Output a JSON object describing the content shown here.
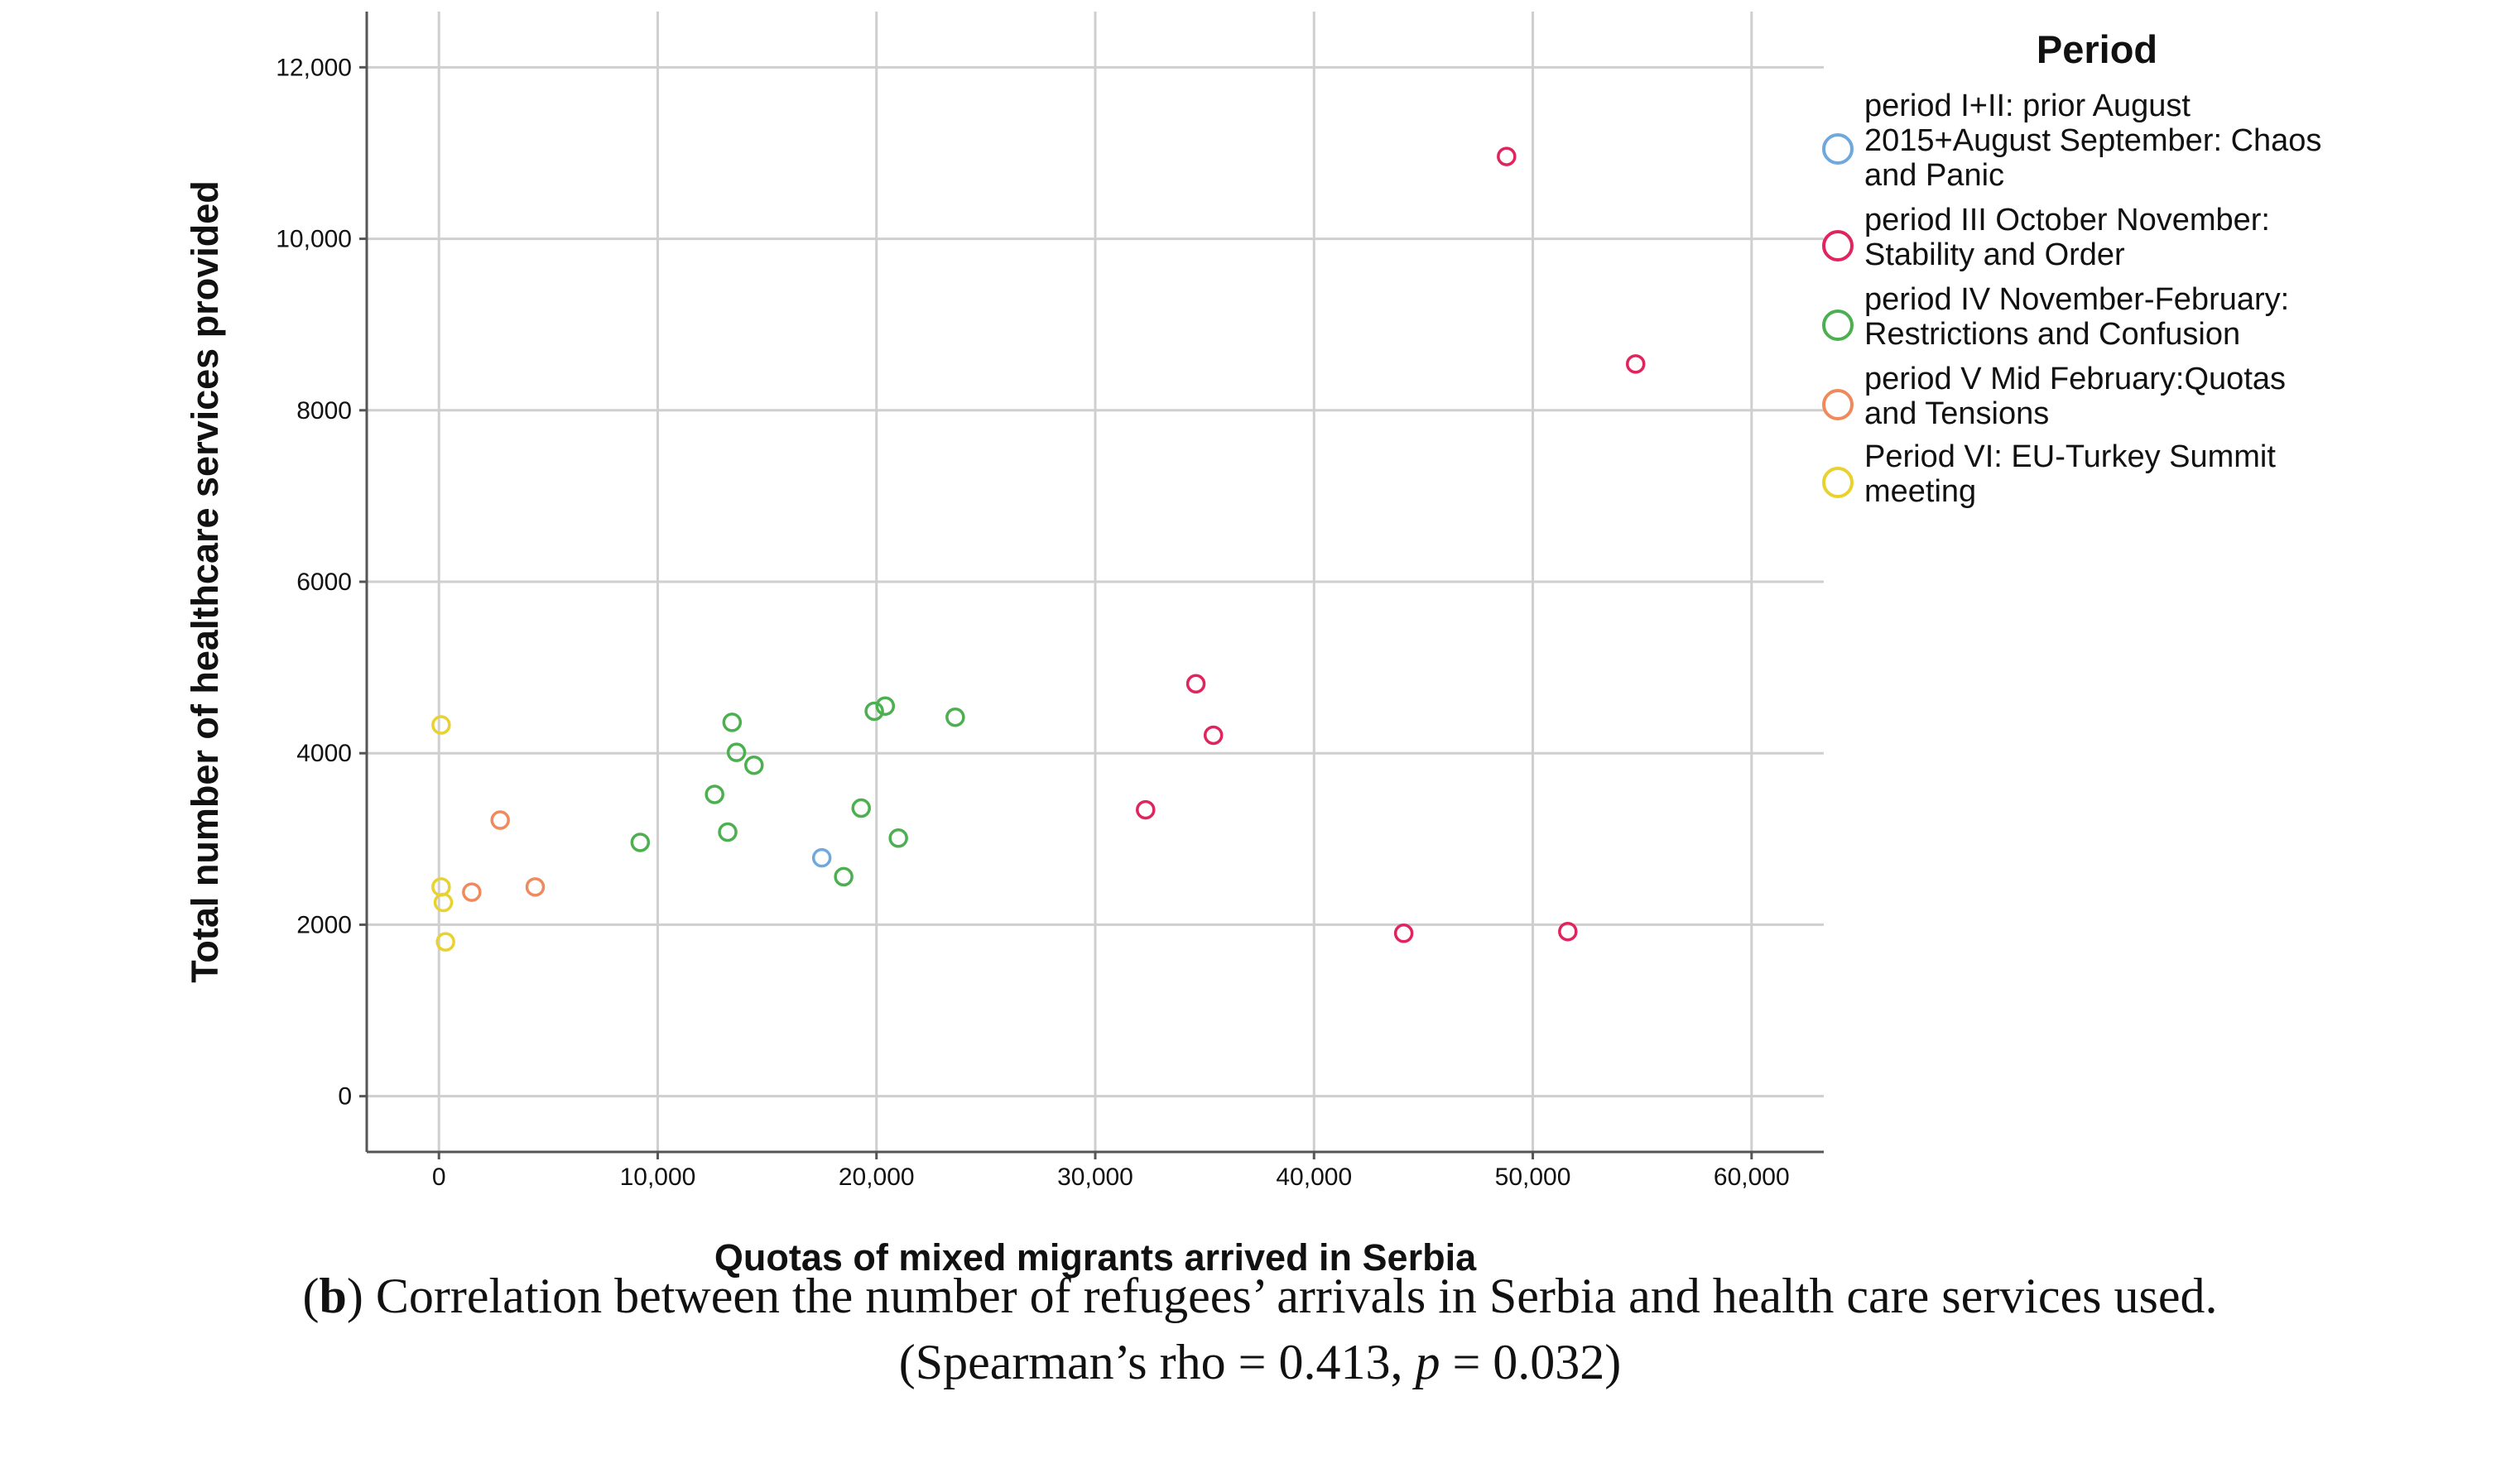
{
  "chart_data": {
    "type": "scatter",
    "xlabel": "Quotas of mixed migrants arrived in Serbia",
    "ylabel": "Total number of healthcare services provided",
    "xlim": [
      -3300,
      63300
    ],
    "ylim": [
      -650,
      12650
    ],
    "xticks": [
      0,
      10000,
      20000,
      30000,
      40000,
      50000,
      60000
    ],
    "xtick_labels": [
      "0",
      "10,000",
      "20,000",
      "30,000",
      "40,000",
      "50,000",
      "60,000"
    ],
    "yticks": [
      0,
      2000,
      4000,
      6000,
      8000,
      10000,
      12000
    ],
    "ytick_labels": [
      "0",
      "2000",
      "4000",
      "6000",
      "8000",
      "10,000",
      "12,000"
    ],
    "grid": true,
    "legend_title": "Period",
    "legend_position": "right",
    "series": [
      {
        "name": "period I+II: prior August 2015+August September: Chaos and Panic",
        "legend_lines": [
          "period I+II: prior August",
          "2015+August September: Chaos",
          "and Panic"
        ],
        "color": "#6fa8dc",
        "points": [
          [
            17500,
            2780
          ]
        ]
      },
      {
        "name": "period III October November: Stability and Order",
        "legend_lines": [
          "period III October November:",
          "Stability and Order"
        ],
        "color": "#e0245e",
        "points": [
          [
            48800,
            10960
          ],
          [
            54700,
            8540
          ],
          [
            34600,
            4810
          ],
          [
            35400,
            4210
          ],
          [
            32300,
            3340
          ],
          [
            44100,
            1900
          ],
          [
            51600,
            1920
          ]
        ]
      },
      {
        "name": "period IV November-February: Restrictions and Confusion",
        "legend_lines": [
          "period IV November-February:",
          "Restrictions and Confusion"
        ],
        "color": "#4caf50",
        "points": [
          [
            13400,
            4360
          ],
          [
            13600,
            4010
          ],
          [
            14400,
            3860
          ],
          [
            12600,
            3520
          ],
          [
            13200,
            3080
          ],
          [
            9200,
            2960
          ],
          [
            20400,
            4550
          ],
          [
            19900,
            4490
          ],
          [
            23600,
            4420
          ],
          [
            19300,
            3360
          ],
          [
            21000,
            3010
          ],
          [
            18500,
            2560
          ]
        ]
      },
      {
        "name": "period V Mid February:Quotas and Tensions",
        "legend_lines": [
          "period V Mid February:Quotas",
          "and Tensions"
        ],
        "color": "#f08a5d",
        "points": [
          [
            2800,
            3220
          ],
          [
            1500,
            2380
          ],
          [
            4400,
            2440
          ]
        ]
      },
      {
        "name": "Period VI: EU-Turkey Summit meeting",
        "legend_lines": [
          "Period VI: EU-Turkey Summit",
          "meeting"
        ],
        "color": "#e8d22e",
        "points": [
          [
            100,
            4330
          ],
          [
            100,
            2440
          ],
          [
            200,
            2260
          ],
          [
            300,
            1800
          ]
        ]
      }
    ]
  },
  "caption": {
    "line1_prefix": "(",
    "line1_bold": "b",
    "line1_text": ") Correlation between the number of refugees’ arrivals in Serbia and health care services used.",
    "line2_prefix": "(Spearman’s rho = 0.413, ",
    "line2_italic": "p",
    "line2_suffix": " = 0.032)"
  }
}
